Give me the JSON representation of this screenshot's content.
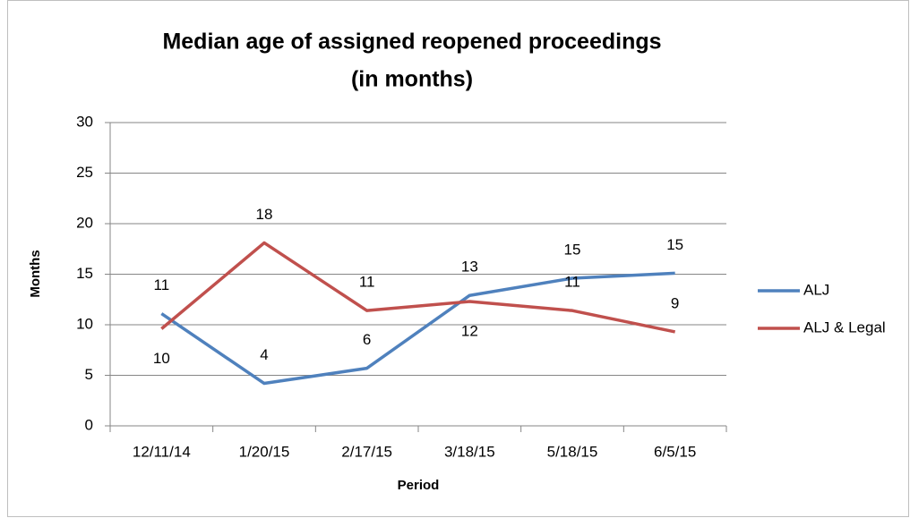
{
  "chart_data": {
    "type": "line",
    "title": [
      "Median age of assigned reopened proceedings",
      "(in months)"
    ],
    "x_label": "Period",
    "y_label": "Months",
    "categories": [
      "12/11/14",
      "1/20/15",
      "2/17/15",
      "3/18/15",
      "5/18/15",
      "6/5/15"
    ],
    "series": [
      {
        "name": "ALJ",
        "color": "#4f81bd",
        "values": [
          11.1,
          4.2,
          5.7,
          12.9,
          14.6,
          15.1
        ],
        "value_labels": [
          "11",
          "4",
          "6",
          "13",
          "15",
          "15"
        ]
      },
      {
        "name": "ALJ & Legal",
        "color": "#c0504d",
        "values": [
          9.6,
          18.1,
          11.4,
          12.3,
          11.4,
          9.3
        ],
        "value_labels": [
          "10",
          "18",
          "11",
          "12",
          "11",
          "9"
        ]
      }
    ],
    "ylim": [
      0,
      30
    ],
    "yticks": [
      0,
      5,
      10,
      15,
      20,
      25,
      30
    ],
    "grid": true,
    "legend": "right"
  }
}
